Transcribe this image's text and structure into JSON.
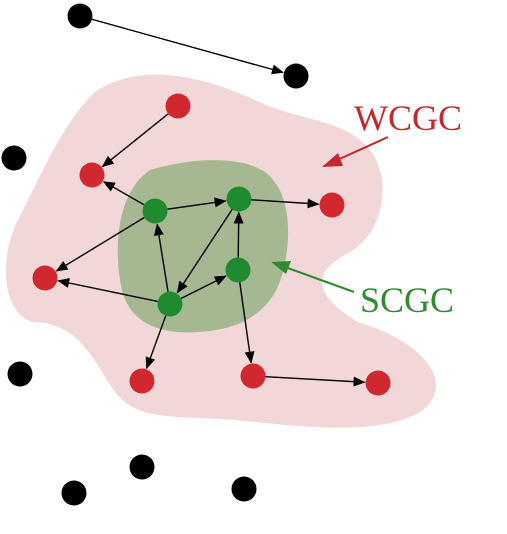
{
  "colors": {
    "wcgc_fill": "#f2d7d8",
    "scgc_fill": "#a6b892",
    "wcgc_node": "#d0282e",
    "scgc_node": "#1f8a2f",
    "other_node": "#000000",
    "edge": "#000000",
    "wcgc_label": "#c4282f",
    "scgc_label": "#2e8b2f"
  },
  "labels": {
    "wcgc": "WCGC",
    "scgc": "SCGC"
  },
  "nodes": [
    {
      "id": "b1",
      "group": "other"
    },
    {
      "id": "b2",
      "group": "other"
    },
    {
      "id": "b3",
      "group": "other"
    },
    {
      "id": "b4",
      "group": "other"
    },
    {
      "id": "b5",
      "group": "other"
    },
    {
      "id": "b6",
      "group": "other"
    },
    {
      "id": "b7",
      "group": "other"
    },
    {
      "id": "r1",
      "group": "wcgc"
    },
    {
      "id": "r2",
      "group": "wcgc"
    },
    {
      "id": "r3",
      "group": "wcgc"
    },
    {
      "id": "r4",
      "group": "wcgc"
    },
    {
      "id": "r5",
      "group": "wcgc"
    },
    {
      "id": "r6",
      "group": "wcgc"
    },
    {
      "id": "r7",
      "group": "wcgc"
    },
    {
      "id": "g1",
      "group": "scgc"
    },
    {
      "id": "g2",
      "group": "scgc"
    },
    {
      "id": "g3",
      "group": "scgc"
    },
    {
      "id": "g4",
      "group": "scgc"
    }
  ],
  "edges": [
    [
      "b1",
      "b2"
    ],
    [
      "r1",
      "r2"
    ],
    [
      "g1",
      "r2"
    ],
    [
      "g1",
      "g2"
    ],
    [
      "g2",
      "r3"
    ],
    [
      "g1",
      "r4"
    ],
    [
      "g4",
      "g1"
    ],
    [
      "g4",
      "r4"
    ],
    [
      "g2",
      "g4"
    ],
    [
      "g4",
      "g3"
    ],
    [
      "g3",
      "g2"
    ],
    [
      "g3",
      "r6"
    ],
    [
      "g4",
      "r5"
    ],
    [
      "r6",
      "r7"
    ]
  ]
}
